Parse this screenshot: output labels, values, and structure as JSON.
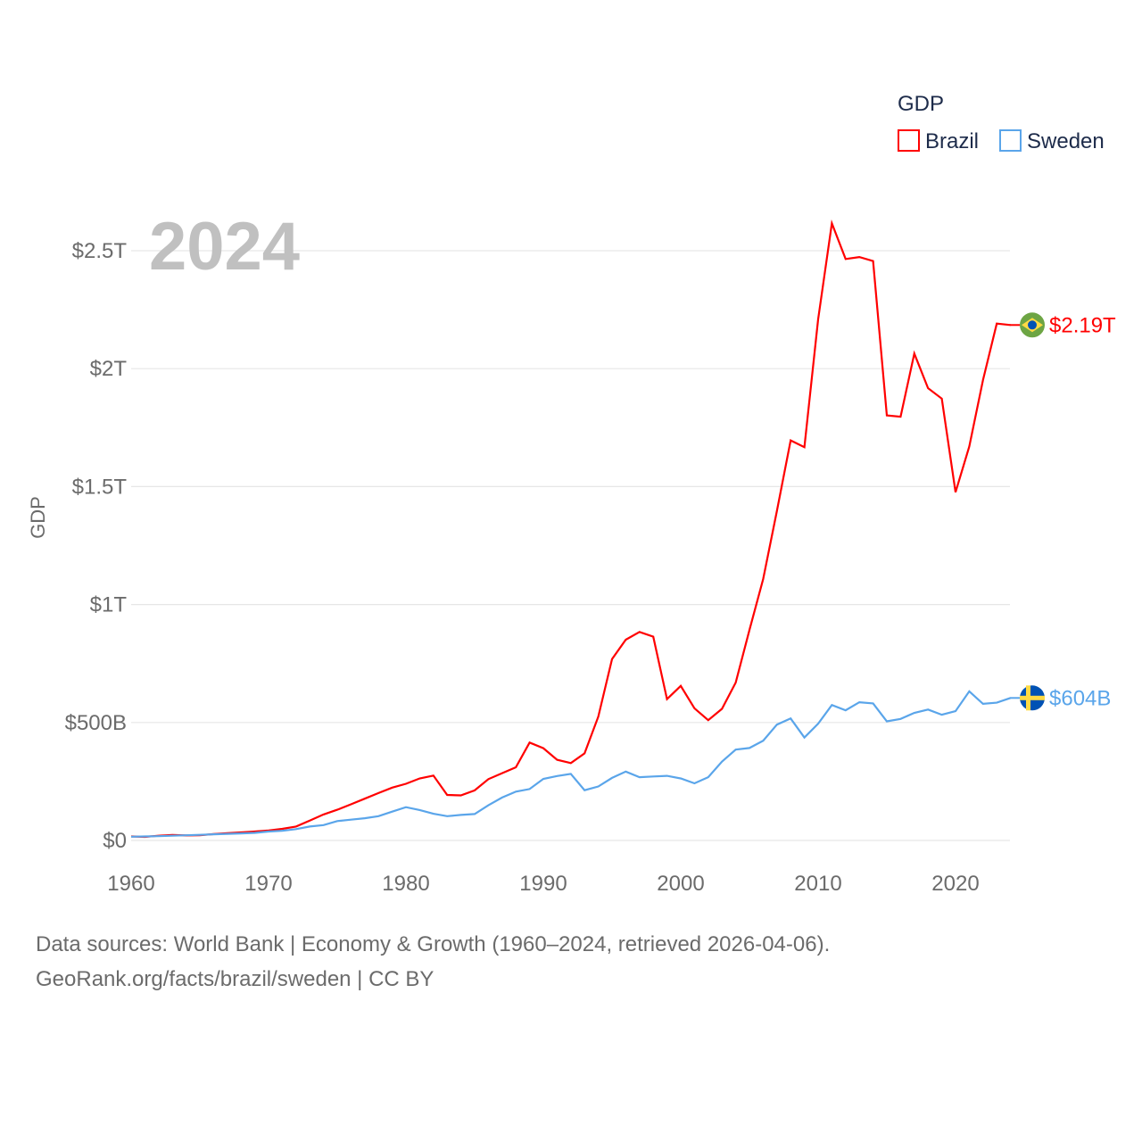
{
  "chart_data": {
    "type": "line",
    "title": "",
    "year_label": "2024",
    "xlabel": "",
    "ylabel": "GDP",
    "xlim": [
      1960,
      2024
    ],
    "ylim": [
      0,
      2.5
    ],
    "y_unit": "trillion USD",
    "x_ticks": [
      1960,
      1970,
      1980,
      1990,
      2000,
      2010,
      2020
    ],
    "x_tick_labels": [
      "1960",
      "1970",
      "1980",
      "1990",
      "2000",
      "2010",
      "2020"
    ],
    "y_ticks": [
      0,
      0.5,
      1,
      1.5,
      2,
      2.5
    ],
    "y_tick_labels": [
      "$0",
      "$500B",
      "$1T",
      "$1.5T",
      "$2T",
      "$2.5T"
    ],
    "grid": true,
    "legend": {
      "title": "GDP",
      "placement": "top-right",
      "entries": [
        "Brazil",
        "Sweden"
      ]
    },
    "x": [
      1960,
      1961,
      1962,
      1963,
      1964,
      1965,
      1966,
      1967,
      1968,
      1969,
      1970,
      1971,
      1972,
      1973,
      1974,
      1975,
      1976,
      1977,
      1978,
      1979,
      1980,
      1981,
      1982,
      1983,
      1984,
      1985,
      1986,
      1987,
      1988,
      1989,
      1990,
      1991,
      1992,
      1993,
      1994,
      1995,
      1996,
      1997,
      1998,
      1999,
      2000,
      2001,
      2002,
      2003,
      2004,
      2005,
      2006,
      2007,
      2008,
      2009,
      2010,
      2011,
      2012,
      2013,
      2014,
      2015,
      2016,
      2017,
      2018,
      2019,
      2020,
      2021,
      2022,
      2023,
      2024
    ],
    "series": [
      {
        "name": "Brazil",
        "color": "#ff0000",
        "end_label": "$2.19T",
        "flag": "brazil-flag",
        "values": [
          0.017,
          0.015,
          0.02,
          0.023,
          0.021,
          0.022,
          0.027,
          0.031,
          0.034,
          0.038,
          0.042,
          0.049,
          0.059,
          0.084,
          0.11,
          0.13,
          0.153,
          0.177,
          0.201,
          0.224,
          0.24,
          0.263,
          0.275,
          0.193,
          0.191,
          0.212,
          0.26,
          0.285,
          0.31,
          0.415,
          0.391,
          0.342,
          0.328,
          0.369,
          0.525,
          0.769,
          0.851,
          0.884,
          0.864,
          0.599,
          0.655,
          0.56,
          0.51,
          0.558,
          0.669,
          0.892,
          1.108,
          1.397,
          1.696,
          1.667,
          2.209,
          2.616,
          2.465,
          2.473,
          2.456,
          1.802,
          1.796,
          2.064,
          1.917,
          1.873,
          1.476,
          1.67,
          1.952,
          2.191,
          2.185
        ]
      },
      {
        "name": "Sweden",
        "color": "#5aa5ea",
        "end_label": "$604B",
        "flag": "sweden-flag",
        "values": [
          0.016,
          0.017,
          0.018,
          0.02,
          0.022,
          0.024,
          0.026,
          0.028,
          0.03,
          0.032,
          0.038,
          0.041,
          0.048,
          0.059,
          0.065,
          0.082,
          0.088,
          0.094,
          0.103,
          0.122,
          0.141,
          0.129,
          0.113,
          0.103,
          0.108,
          0.112,
          0.149,
          0.182,
          0.207,
          0.218,
          0.261,
          0.273,
          0.282,
          0.213,
          0.229,
          0.265,
          0.292,
          0.268,
          0.271,
          0.274,
          0.263,
          0.242,
          0.268,
          0.334,
          0.385,
          0.392,
          0.423,
          0.491,
          0.517,
          0.436,
          0.495,
          0.574,
          0.552,
          0.586,
          0.581,
          0.505,
          0.515,
          0.541,
          0.555,
          0.533,
          0.548,
          0.632,
          0.579,
          0.584,
          0.604
        ]
      }
    ]
  },
  "footer": {
    "line1": "Data sources: World Bank | Economy & Growth (1960–2024, retrieved 2026-04-06).",
    "line2": "GeoRank.org/facts/brazil/sweden | CC BY"
  }
}
